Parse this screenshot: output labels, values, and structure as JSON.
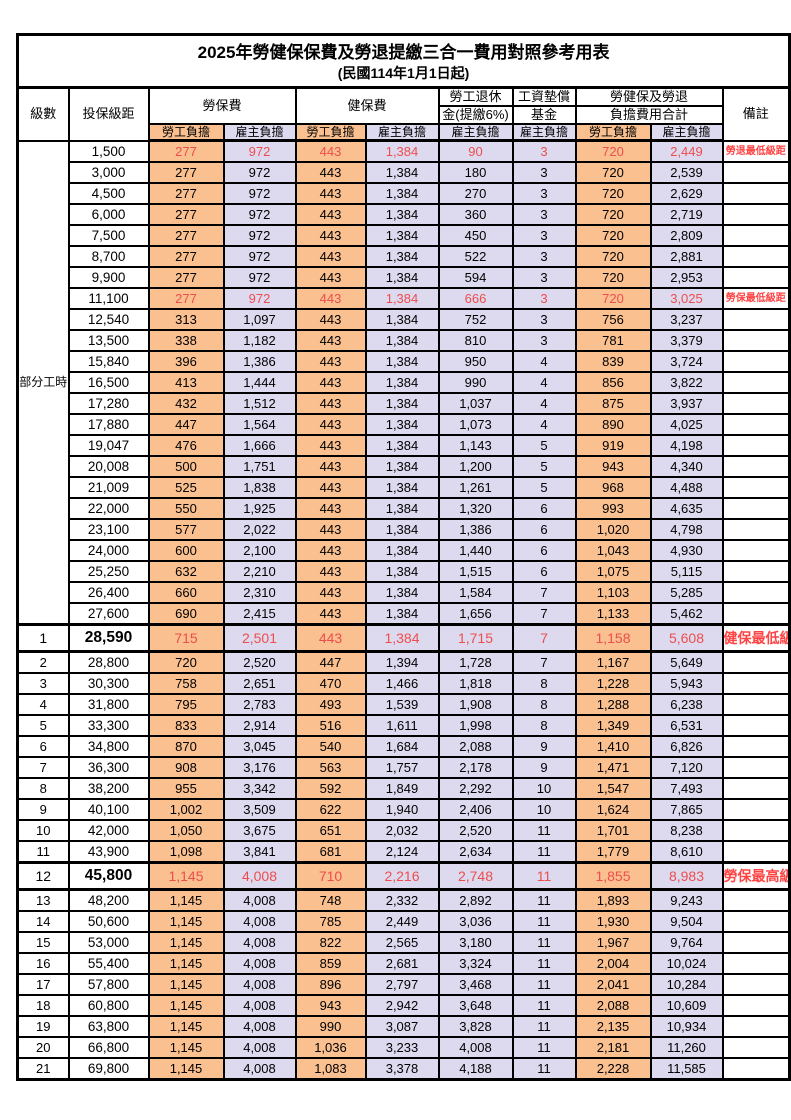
{
  "title": "2025年勞健保保費及勞退提繳三合一費用對照參考用表",
  "subtitle": "(民國114年1月1日起)",
  "header": {
    "level": "級數",
    "bracket": "投保級距",
    "labor_fee": "勞保費",
    "health_fee": "健保費",
    "pension_line1": "勞工退休",
    "pension_line2": "金(提繳6%)",
    "wage_fund_line1": "工資墊償",
    "wage_fund_line2": "基金",
    "total_line1": "勞健保及勞退",
    "total_line2": "負擔費用合計",
    "note": "備註",
    "employee_share": "勞工負擔",
    "employer_share": "雇主負擔"
  },
  "part_time_label": "部分工時",
  "colors": {
    "employee_bg": "#FAC090",
    "employer_bg": "#DDDAEF",
    "highlight_text": "#EE4D4D",
    "note_text": "#FF4444",
    "border": "#000000"
  },
  "rows": [
    {
      "level": "",
      "bracket": "1,500",
      "values": [
        "277",
        "972",
        "443",
        "1,384",
        "90",
        "3",
        "720",
        "2,449"
      ],
      "note": "勞退最低級距",
      "red": true,
      "em": false
    },
    {
      "level": "",
      "bracket": "3,000",
      "values": [
        "277",
        "972",
        "443",
        "1,384",
        "180",
        "3",
        "720",
        "2,539"
      ],
      "note": "",
      "red": false,
      "em": false
    },
    {
      "level": "",
      "bracket": "4,500",
      "values": [
        "277",
        "972",
        "443",
        "1,384",
        "270",
        "3",
        "720",
        "2,629"
      ],
      "note": "",
      "red": false,
      "em": false
    },
    {
      "level": "",
      "bracket": "6,000",
      "values": [
        "277",
        "972",
        "443",
        "1,384",
        "360",
        "3",
        "720",
        "2,719"
      ],
      "note": "",
      "red": false,
      "em": false
    },
    {
      "level": "",
      "bracket": "7,500",
      "values": [
        "277",
        "972",
        "443",
        "1,384",
        "450",
        "3",
        "720",
        "2,809"
      ],
      "note": "",
      "red": false,
      "em": false
    },
    {
      "level": "",
      "bracket": "8,700",
      "values": [
        "277",
        "972",
        "443",
        "1,384",
        "522",
        "3",
        "720",
        "2,881"
      ],
      "note": "",
      "red": false,
      "em": false
    },
    {
      "level": "",
      "bracket": "9,900",
      "values": [
        "277",
        "972",
        "443",
        "1,384",
        "594",
        "3",
        "720",
        "2,953"
      ],
      "note": "",
      "red": false,
      "em": false
    },
    {
      "level": "",
      "bracket": "11,100",
      "values": [
        "277",
        "972",
        "443",
        "1,384",
        "666",
        "3",
        "720",
        "3,025"
      ],
      "note": "勞保最低級距",
      "red": true,
      "em": false
    },
    {
      "level": "",
      "bracket": "12,540",
      "values": [
        "313",
        "1,097",
        "443",
        "1,384",
        "752",
        "3",
        "756",
        "3,237"
      ],
      "note": "",
      "red": false,
      "em": false
    },
    {
      "level": "",
      "bracket": "13,500",
      "values": [
        "338",
        "1,182",
        "443",
        "1,384",
        "810",
        "3",
        "781",
        "3,379"
      ],
      "note": "",
      "red": false,
      "em": false
    },
    {
      "level": "",
      "bracket": "15,840",
      "values": [
        "396",
        "1,386",
        "443",
        "1,384",
        "950",
        "4",
        "839",
        "3,724"
      ],
      "note": "",
      "red": false,
      "em": false
    },
    {
      "level": "",
      "bracket": "16,500",
      "values": [
        "413",
        "1,444",
        "443",
        "1,384",
        "990",
        "4",
        "856",
        "3,822"
      ],
      "note": "",
      "red": false,
      "em": false
    },
    {
      "level": "",
      "bracket": "17,280",
      "values": [
        "432",
        "1,512",
        "443",
        "1,384",
        "1,037",
        "4",
        "875",
        "3,937"
      ],
      "note": "",
      "red": false,
      "em": false
    },
    {
      "level": "",
      "bracket": "17,880",
      "values": [
        "447",
        "1,564",
        "443",
        "1,384",
        "1,073",
        "4",
        "890",
        "4,025"
      ],
      "note": "",
      "red": false,
      "em": false
    },
    {
      "level": "",
      "bracket": "19,047",
      "values": [
        "476",
        "1,666",
        "443",
        "1,384",
        "1,143",
        "5",
        "919",
        "4,198"
      ],
      "note": "",
      "red": false,
      "em": false
    },
    {
      "level": "",
      "bracket": "20,008",
      "values": [
        "500",
        "1,751",
        "443",
        "1,384",
        "1,200",
        "5",
        "943",
        "4,340"
      ],
      "note": "",
      "red": false,
      "em": false
    },
    {
      "level": "",
      "bracket": "21,009",
      "values": [
        "525",
        "1,838",
        "443",
        "1,384",
        "1,261",
        "5",
        "968",
        "4,488"
      ],
      "note": "",
      "red": false,
      "em": false
    },
    {
      "level": "",
      "bracket": "22,000",
      "values": [
        "550",
        "1,925",
        "443",
        "1,384",
        "1,320",
        "6",
        "993",
        "4,635"
      ],
      "note": "",
      "red": false,
      "em": false
    },
    {
      "level": "",
      "bracket": "23,100",
      "values": [
        "577",
        "2,022",
        "443",
        "1,384",
        "1,386",
        "6",
        "1,020",
        "4,798"
      ],
      "note": "",
      "red": false,
      "em": false
    },
    {
      "level": "",
      "bracket": "24,000",
      "values": [
        "600",
        "2,100",
        "443",
        "1,384",
        "1,440",
        "6",
        "1,043",
        "4,930"
      ],
      "note": "",
      "red": false,
      "em": false
    },
    {
      "level": "",
      "bracket": "25,250",
      "values": [
        "632",
        "2,210",
        "443",
        "1,384",
        "1,515",
        "6",
        "1,075",
        "5,115"
      ],
      "note": "",
      "red": false,
      "em": false
    },
    {
      "level": "",
      "bracket": "26,400",
      "values": [
        "660",
        "2,310",
        "443",
        "1,384",
        "1,584",
        "7",
        "1,103",
        "5,285"
      ],
      "note": "",
      "red": false,
      "em": false
    },
    {
      "level": "",
      "bracket": "27,600",
      "values": [
        "690",
        "2,415",
        "443",
        "1,384",
        "1,656",
        "7",
        "1,133",
        "5,462"
      ],
      "note": "",
      "red": false,
      "em": false
    },
    {
      "level": "1",
      "bracket": "28,590",
      "values": [
        "715",
        "2,501",
        "443",
        "1,384",
        "1,715",
        "7",
        "1,158",
        "5,608"
      ],
      "note": "健保最低級距",
      "red": true,
      "em": true
    },
    {
      "level": "2",
      "bracket": "28,800",
      "values": [
        "720",
        "2,520",
        "447",
        "1,394",
        "1,728",
        "7",
        "1,167",
        "5,649"
      ],
      "note": "",
      "red": false,
      "em": false
    },
    {
      "level": "3",
      "bracket": "30,300",
      "values": [
        "758",
        "2,651",
        "470",
        "1,466",
        "1,818",
        "8",
        "1,228",
        "5,943"
      ],
      "note": "",
      "red": false,
      "em": false
    },
    {
      "level": "4",
      "bracket": "31,800",
      "values": [
        "795",
        "2,783",
        "493",
        "1,539",
        "1,908",
        "8",
        "1,288",
        "6,238"
      ],
      "note": "",
      "red": false,
      "em": false
    },
    {
      "level": "5",
      "bracket": "33,300",
      "values": [
        "833",
        "2,914",
        "516",
        "1,611",
        "1,998",
        "8",
        "1,349",
        "6,531"
      ],
      "note": "",
      "red": false,
      "em": false
    },
    {
      "level": "6",
      "bracket": "34,800",
      "values": [
        "870",
        "3,045",
        "540",
        "1,684",
        "2,088",
        "9",
        "1,410",
        "6,826"
      ],
      "note": "",
      "red": false,
      "em": false
    },
    {
      "level": "7",
      "bracket": "36,300",
      "values": [
        "908",
        "3,176",
        "563",
        "1,757",
        "2,178",
        "9",
        "1,471",
        "7,120"
      ],
      "note": "",
      "red": false,
      "em": false
    },
    {
      "level": "8",
      "bracket": "38,200",
      "values": [
        "955",
        "3,342",
        "592",
        "1,849",
        "2,292",
        "10",
        "1,547",
        "7,493"
      ],
      "note": "",
      "red": false,
      "em": false
    },
    {
      "level": "9",
      "bracket": "40,100",
      "values": [
        "1,002",
        "3,509",
        "622",
        "1,940",
        "2,406",
        "10",
        "1,624",
        "7,865"
      ],
      "note": "",
      "red": false,
      "em": false
    },
    {
      "level": "10",
      "bracket": "42,000",
      "values": [
        "1,050",
        "3,675",
        "651",
        "2,032",
        "2,520",
        "11",
        "1,701",
        "8,238"
      ],
      "note": "",
      "red": false,
      "em": false
    },
    {
      "level": "11",
      "bracket": "43,900",
      "values": [
        "1,098",
        "3,841",
        "681",
        "2,124",
        "2,634",
        "11",
        "1,779",
        "8,610"
      ],
      "note": "",
      "red": false,
      "em": false
    },
    {
      "level": "12",
      "bracket": "45,800",
      "values": [
        "1,145",
        "4,008",
        "710",
        "2,216",
        "2,748",
        "11",
        "1,855",
        "8,983"
      ],
      "note": "勞保最高級距",
      "red": true,
      "em": true
    },
    {
      "level": "13",
      "bracket": "48,200",
      "values": [
        "1,145",
        "4,008",
        "748",
        "2,332",
        "2,892",
        "11",
        "1,893",
        "9,243"
      ],
      "note": "",
      "red": false,
      "em": false
    },
    {
      "level": "14",
      "bracket": "50,600",
      "values": [
        "1,145",
        "4,008",
        "785",
        "2,449",
        "3,036",
        "11",
        "1,930",
        "9,504"
      ],
      "note": "",
      "red": false,
      "em": false
    },
    {
      "level": "15",
      "bracket": "53,000",
      "values": [
        "1,145",
        "4,008",
        "822",
        "2,565",
        "3,180",
        "11",
        "1,967",
        "9,764"
      ],
      "note": "",
      "red": false,
      "em": false
    },
    {
      "level": "16",
      "bracket": "55,400",
      "values": [
        "1,145",
        "4,008",
        "859",
        "2,681",
        "3,324",
        "11",
        "2,004",
        "10,024"
      ],
      "note": "",
      "red": false,
      "em": false
    },
    {
      "level": "17",
      "bracket": "57,800",
      "values": [
        "1,145",
        "4,008",
        "896",
        "2,797",
        "3,468",
        "11",
        "2,041",
        "10,284"
      ],
      "note": "",
      "red": false,
      "em": false
    },
    {
      "level": "18",
      "bracket": "60,800",
      "values": [
        "1,145",
        "4,008",
        "943",
        "2,942",
        "3,648",
        "11",
        "2,088",
        "10,609"
      ],
      "note": "",
      "red": false,
      "em": false
    },
    {
      "level": "19",
      "bracket": "63,800",
      "values": [
        "1,145",
        "4,008",
        "990",
        "3,087",
        "3,828",
        "11",
        "2,135",
        "10,934"
      ],
      "note": "",
      "red": false,
      "em": false
    },
    {
      "level": "20",
      "bracket": "66,800",
      "values": [
        "1,145",
        "4,008",
        "1,036",
        "3,233",
        "4,008",
        "11",
        "2,181",
        "11,260"
      ],
      "note": "",
      "red": false,
      "em": false
    },
    {
      "level": "21",
      "bracket": "69,800",
      "values": [
        "1,145",
        "4,008",
        "1,083",
        "3,378",
        "4,188",
        "11",
        "2,228",
        "11,585"
      ],
      "note": "",
      "red": false,
      "em": false
    }
  ]
}
